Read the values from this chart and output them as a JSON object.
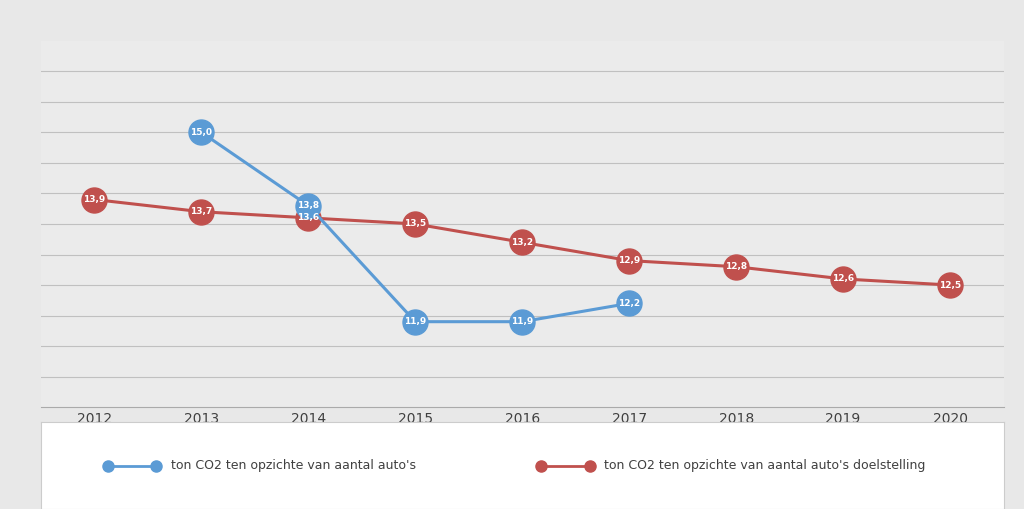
{
  "years": [
    2012,
    2013,
    2014,
    2015,
    2016,
    2017,
    2018,
    2019,
    2020
  ],
  "blue_values": [
    null,
    15.0,
    13.8,
    11.9,
    11.9,
    12.2,
    null,
    null,
    null
  ],
  "red_values": [
    13.9,
    13.7,
    13.6,
    13.5,
    13.2,
    12.9,
    12.8,
    12.6,
    12.5
  ],
  "blue_labels": [
    null,
    "15,0",
    "13,8",
    "11,9",
    "11,9",
    "12,2",
    null,
    null,
    null
  ],
  "red_labels": [
    "13,9",
    "13,7",
    "13,6",
    "13,5",
    "13,2",
    "12,9",
    "12,8",
    "12,6",
    "12,5"
  ],
  "blue_color": "#5B9BD5",
  "red_color": "#C0504D",
  "background_color": "#E8E8E8",
  "plot_bg_top": "#F2F2F2",
  "plot_bg_bottom": "#E0E0E0",
  "legend_label_blue": "ton CO2 ten opzichte van aantal auto's",
  "legend_label_red": "ton CO2 ten opzichte van aantal auto's doelstelling",
  "ylim": [
    10.5,
    16.5
  ],
  "xlim": [
    2011.5,
    2020.5
  ],
  "grid_color": "#C8C8C8",
  "grid_positions": [
    11.0,
    11.5,
    12.0,
    12.5,
    13.0,
    13.5,
    14.0,
    14.5,
    15.0,
    15.5,
    16.0
  ]
}
